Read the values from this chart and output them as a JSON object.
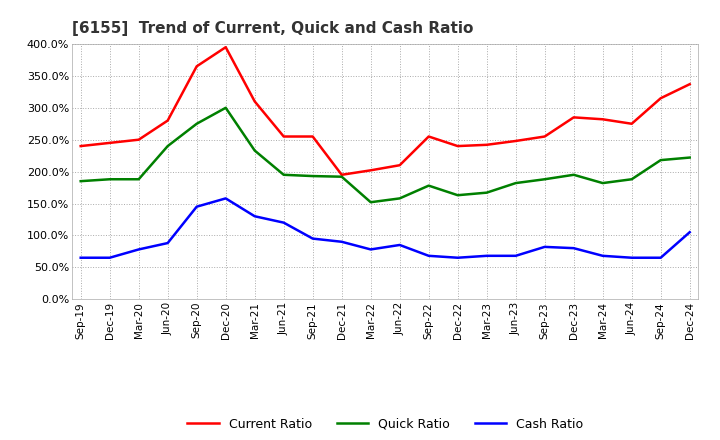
{
  "title": "[6155]  Trend of Current, Quick and Cash Ratio",
  "x_labels": [
    "Sep-19",
    "Dec-19",
    "Mar-20",
    "Jun-20",
    "Sep-20",
    "Dec-20",
    "Mar-21",
    "Jun-21",
    "Sep-21",
    "Dec-21",
    "Mar-22",
    "Jun-22",
    "Sep-22",
    "Dec-22",
    "Mar-23",
    "Jun-23",
    "Sep-23",
    "Dec-23",
    "Mar-24",
    "Jun-24",
    "Sep-24",
    "Dec-24"
  ],
  "current_ratio": [
    240,
    245,
    250,
    280,
    365,
    395,
    310,
    255,
    255,
    195,
    202,
    210,
    255,
    240,
    242,
    248,
    255,
    285,
    282,
    275,
    315,
    337
  ],
  "quick_ratio": [
    185,
    188,
    188,
    240,
    275,
    300,
    233,
    195,
    193,
    192,
    152,
    158,
    178,
    163,
    167,
    182,
    188,
    195,
    182,
    188,
    218,
    222
  ],
  "cash_ratio": [
    65,
    65,
    78,
    88,
    145,
    158,
    130,
    120,
    95,
    90,
    78,
    85,
    68,
    65,
    68,
    68,
    82,
    80,
    68,
    65,
    65,
    105
  ],
  "current_color": "#ff0000",
  "quick_color": "#008000",
  "cash_color": "#0000ff",
  "ylim": [
    0,
    400
  ],
  "yticks": [
    0,
    50,
    100,
    150,
    200,
    250,
    300,
    350,
    400
  ],
  "background_color": "#ffffff",
  "grid_color": "#aaaaaa"
}
